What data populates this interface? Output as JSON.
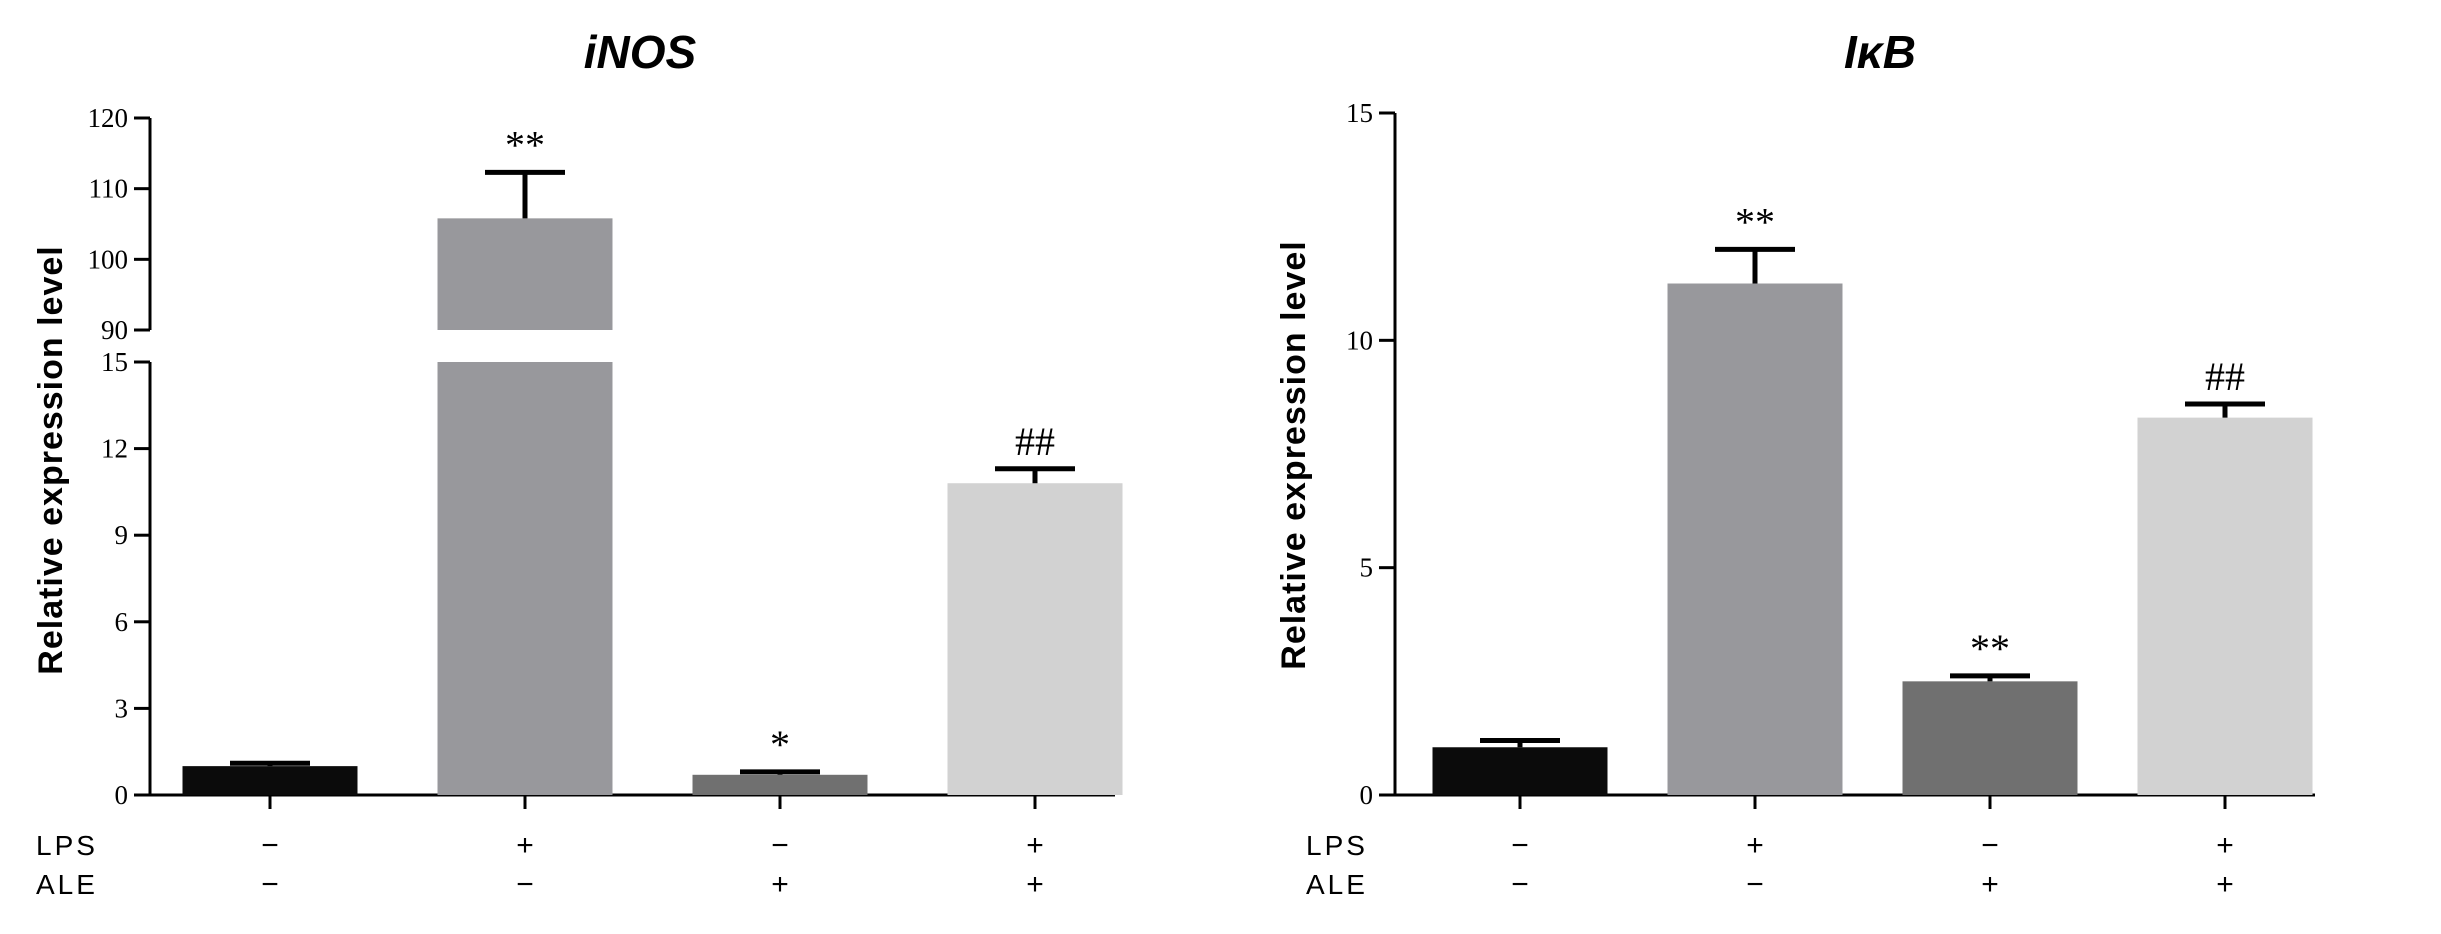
{
  "chart_data": [
    {
      "type": "bar",
      "title": "iNOS",
      "ylabel": "Relative  expression level",
      "y_axis_break": {
        "lower": [
          0,
          15
        ],
        "upper": [
          90,
          120
        ]
      },
      "yticks_lower": [
        "0",
        "3",
        "6",
        "9",
        "12",
        "15"
      ],
      "yticks_upper": [
        "90",
        "100",
        "110",
        "120"
      ],
      "categories": [
        "−/−",
        "+/−",
        "−/+",
        "+/+"
      ],
      "values": [
        1.0,
        105.8,
        0.7,
        10.8
      ],
      "errors": [
        0.1,
        6.5,
        0.1,
        0.5
      ],
      "colors": [
        "#0b0b0b",
        "#98989c",
        "#707070",
        "#d2d2d2"
      ],
      "annotations": [
        "",
        "**",
        "*",
        "##"
      ],
      "conditions": [
        {
          "label": "LPS",
          "values": [
            "−",
            "+",
            "−",
            "+"
          ]
        },
        {
          "label": "ALE",
          "values": [
            "−",
            "−",
            "+",
            "+"
          ]
        }
      ]
    },
    {
      "type": "bar",
      "title": "IκB",
      "ylabel": "Relative  expression level",
      "ylim": [
        0,
        15
      ],
      "yticks": [
        "0",
        "5",
        "10",
        "15"
      ],
      "categories": [
        "−/−",
        "+/−",
        "−/+",
        "+/+"
      ],
      "values": [
        1.05,
        11.25,
        2.5,
        8.3
      ],
      "errors": [
        0.15,
        0.75,
        0.12,
        0.3
      ],
      "colors": [
        "#0b0b0b",
        "#98989c",
        "#707070",
        "#d2d2d2"
      ],
      "annotations": [
        "",
        "**",
        "**",
        "##"
      ],
      "conditions": [
        {
          "label": "LPS",
          "values": [
            "−",
            "+",
            "−",
            "+"
          ]
        },
        {
          "label": "ALE",
          "values": [
            "−",
            "−",
            "+",
            "+"
          ]
        }
      ]
    }
  ]
}
